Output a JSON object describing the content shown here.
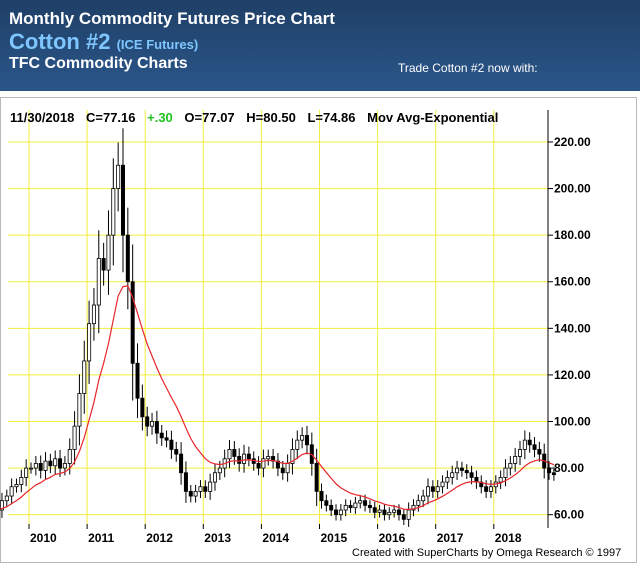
{
  "header": {
    "title": "Monthly Commodity Futures Price Chart",
    "commodity": "Cotton #2",
    "exchange": "(ICE Futures)",
    "subtitle": "TFC Commodity Charts",
    "trade_text": "Trade Cotton #2 now with:"
  },
  "quote": {
    "date": "11/30/2018",
    "close": "C=77.16",
    "change": "+.30",
    "open": "O=77.07",
    "high": "H=80.50",
    "low": "L=74.86",
    "indicator": "Mov Avg-Exponential"
  },
  "credit": "Created with SuperCharts by Omega Research © 1997",
  "colors": {
    "header_bg": "#264e80",
    "commodity_text": "#7fc6ff",
    "change_text": "#22c322",
    "grid": "#f2ef3c",
    "moving_average": "#e8262a",
    "candle_up": "#ffffff",
    "candle_down": "#000000"
  },
  "chart_data": {
    "type": "candlestick",
    "frequency": "monthly",
    "ylim": [
      56,
      226
    ],
    "yticks": [
      60,
      80,
      100,
      120,
      140,
      160,
      180,
      200,
      220
    ],
    "ytick_labels": [
      "60.00",
      "80.00",
      "100.00",
      "120.00",
      "140.00",
      "160.00",
      "180.00",
      "200.00",
      "220.00"
    ],
    "xtick_labels": [
      "2010",
      "2011",
      "2012",
      "2013",
      "2014",
      "2015",
      "2016",
      "2017",
      "2018"
    ],
    "grid": true,
    "series": [
      {
        "start": "2009-06",
        "close": [
          62,
          66,
          68,
          72,
          73,
          76,
          80,
          80,
          82,
          79,
          83,
          81,
          84,
          80,
          82,
          88,
          98,
          112,
          126,
          142,
          150,
          170,
          165,
          180,
          200,
          210,
          180,
          160,
          125,
          110,
          102,
          98,
          100,
          95,
          93,
          92,
          88,
          86,
          78,
          70,
          68,
          70,
          72,
          70,
          74,
          78,
          80,
          84,
          88,
          85,
          82,
          86,
          84,
          82,
          80,
          84,
          85,
          83,
          80,
          78,
          82,
          88,
          92,
          94,
          90,
          82,
          70,
          66,
          64,
          62,
          60,
          62,
          64,
          63,
          65,
          66,
          64,
          63,
          61,
          62,
          60,
          61,
          62,
          60,
          58,
          62,
          64,
          66,
          68,
          72,
          70,
          72,
          74,
          76,
          78,
          80,
          79,
          78,
          76,
          74,
          72,
          70,
          72,
          74,
          76,
          80,
          82,
          85,
          88,
          92,
          90,
          88,
          86,
          80,
          78,
          77.16
        ]
      }
    ],
    "moving_average": {
      "name": "Mov Avg-Exponential"
    }
  }
}
